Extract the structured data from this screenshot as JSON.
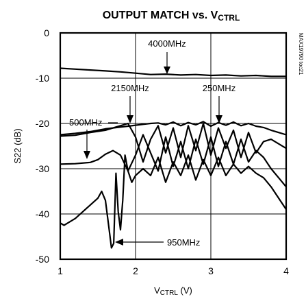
{
  "chart_data": {
    "type": "line",
    "title": "OUTPUT MATCH vs. V",
    "title_subscript": "CTRL",
    "xlabel": "V",
    "xlabel_subscript": "CTRL",
    "xlabel_unit": " (V)",
    "ylabel": "S22 (dB)",
    "xlim": [
      1,
      4
    ],
    "ylim": [
      -50,
      0
    ],
    "x_ticks": [
      "1",
      "2",
      "3",
      "4"
    ],
    "y_ticks": [
      "0",
      "-10",
      "-20",
      "-30",
      "-40",
      "-50"
    ],
    "grid": true,
    "figure_code": "MAX19790 toc21",
    "series": [
      {
        "name": "4000MHz",
        "x": [
          1.0,
          1.2,
          1.4,
          1.6,
          1.8,
          2.0,
          2.2,
          2.4,
          2.6,
          2.8,
          3.0,
          3.2,
          3.4,
          3.6,
          3.8,
          4.0
        ],
        "values": [
          -7.8,
          -8.0,
          -8.2,
          -8.4,
          -8.6,
          -8.9,
          -9.2,
          -9.1,
          -9.3,
          -9.2,
          -9.4,
          -9.3,
          -9.5,
          -9.4,
          -9.6,
          -9.6
        ]
      },
      {
        "name": "250MHz",
        "x": [
          1.0,
          1.2,
          1.4,
          1.6,
          1.8,
          1.9,
          2.0,
          2.1,
          2.2,
          2.3,
          2.4,
          2.5,
          2.6,
          2.7,
          2.8,
          2.9,
          3.0,
          3.1,
          3.2,
          3.3,
          3.4,
          3.5,
          3.6,
          3.7,
          3.8,
          3.9,
          4.0
        ],
        "values": [
          -22.5,
          -22.2,
          -21.8,
          -21.2,
          -20.8,
          -20.6,
          -20.4,
          -20.2,
          -20.0,
          -19.9,
          -20.3,
          -19.7,
          -20.5,
          -19.8,
          -20.3,
          -19.6,
          -20.6,
          -19.8,
          -20.4,
          -19.7,
          -20.5,
          -20.0,
          -20.6,
          -20.9,
          -21.5,
          -22.0,
          -22.5
        ]
      },
      {
        "name": "2150MHz",
        "x": [
          1.0,
          1.2,
          1.4,
          1.6,
          1.7,
          1.8,
          1.9,
          2.0,
          2.1,
          2.2,
          2.3,
          2.4,
          2.5,
          2.6,
          2.7,
          2.8,
          2.9,
          3.0,
          3.1,
          3.2,
          3.3,
          3.4,
          3.5,
          3.6,
          3.7,
          3.8,
          3.9,
          4.0
        ],
        "values": [
          -22.8,
          -22.6,
          -22.0,
          -21.5,
          -21.0,
          -20.5,
          -20.0,
          -23.0,
          -28.5,
          -23.5,
          -20.5,
          -26.5,
          -21.0,
          -27.5,
          -20.5,
          -26.0,
          -20.0,
          -27.0,
          -21.0,
          -25.5,
          -21.5,
          -27.5,
          -22.0,
          -26.5,
          -24.0,
          -23.5,
          -24.5,
          -25.5
        ]
      },
      {
        "name": "500MHz",
        "x": [
          1.0,
          1.2,
          1.4,
          1.5,
          1.6,
          1.7,
          1.8,
          1.9,
          2.0,
          2.1,
          2.2,
          2.3,
          2.4,
          2.5,
          2.6,
          2.7,
          2.8,
          2.9,
          3.0,
          3.1,
          3.2,
          3.3,
          3.4,
          3.5,
          3.6,
          3.7,
          3.8,
          3.9,
          4.0
        ],
        "values": [
          -29.0,
          -28.9,
          -28.6,
          -28.0,
          -26.8,
          -26.0,
          -27.0,
          -30.5,
          -27.0,
          -22.5,
          -26.5,
          -30.5,
          -23.0,
          -29.5,
          -24.0,
          -30.0,
          -23.5,
          -29.0,
          -23.0,
          -29.5,
          -24.0,
          -29.0,
          -23.5,
          -28.5,
          -26.0,
          -27.5,
          -30.0,
          -32.0,
          -34.0
        ]
      },
      {
        "name": "950MHz",
        "x": [
          1.0,
          1.05,
          1.1,
          1.2,
          1.3,
          1.4,
          1.5,
          1.55,
          1.6,
          1.65,
          1.68,
          1.71,
          1.74,
          1.77,
          1.8,
          1.83,
          1.86,
          1.9,
          1.95,
          2.0,
          2.1,
          2.2,
          2.3,
          2.4,
          2.5,
          2.6,
          2.7,
          2.8,
          2.9,
          3.0,
          3.1,
          3.2,
          3.3,
          3.4,
          3.5,
          3.6,
          3.7,
          3.8,
          3.9,
          4.0
        ],
        "values": [
          -42.0,
          -42.5,
          -42.0,
          -41.0,
          -39.5,
          -38.0,
          -36.5,
          -35.0,
          -37.0,
          -43.5,
          -47.5,
          -46.5,
          -31.0,
          -39.5,
          -43.5,
          -37.0,
          -27.0,
          -30.5,
          -33.0,
          -31.5,
          -30.0,
          -31.5,
          -27.5,
          -33.0,
          -28.5,
          -31.5,
          -27.0,
          -32.5,
          -28.0,
          -31.5,
          -27.5,
          -31.5,
          -29.0,
          -31.0,
          -29.5,
          -31.0,
          -32.0,
          -34.0,
          -36.5,
          -39.0
        ]
      }
    ]
  }
}
